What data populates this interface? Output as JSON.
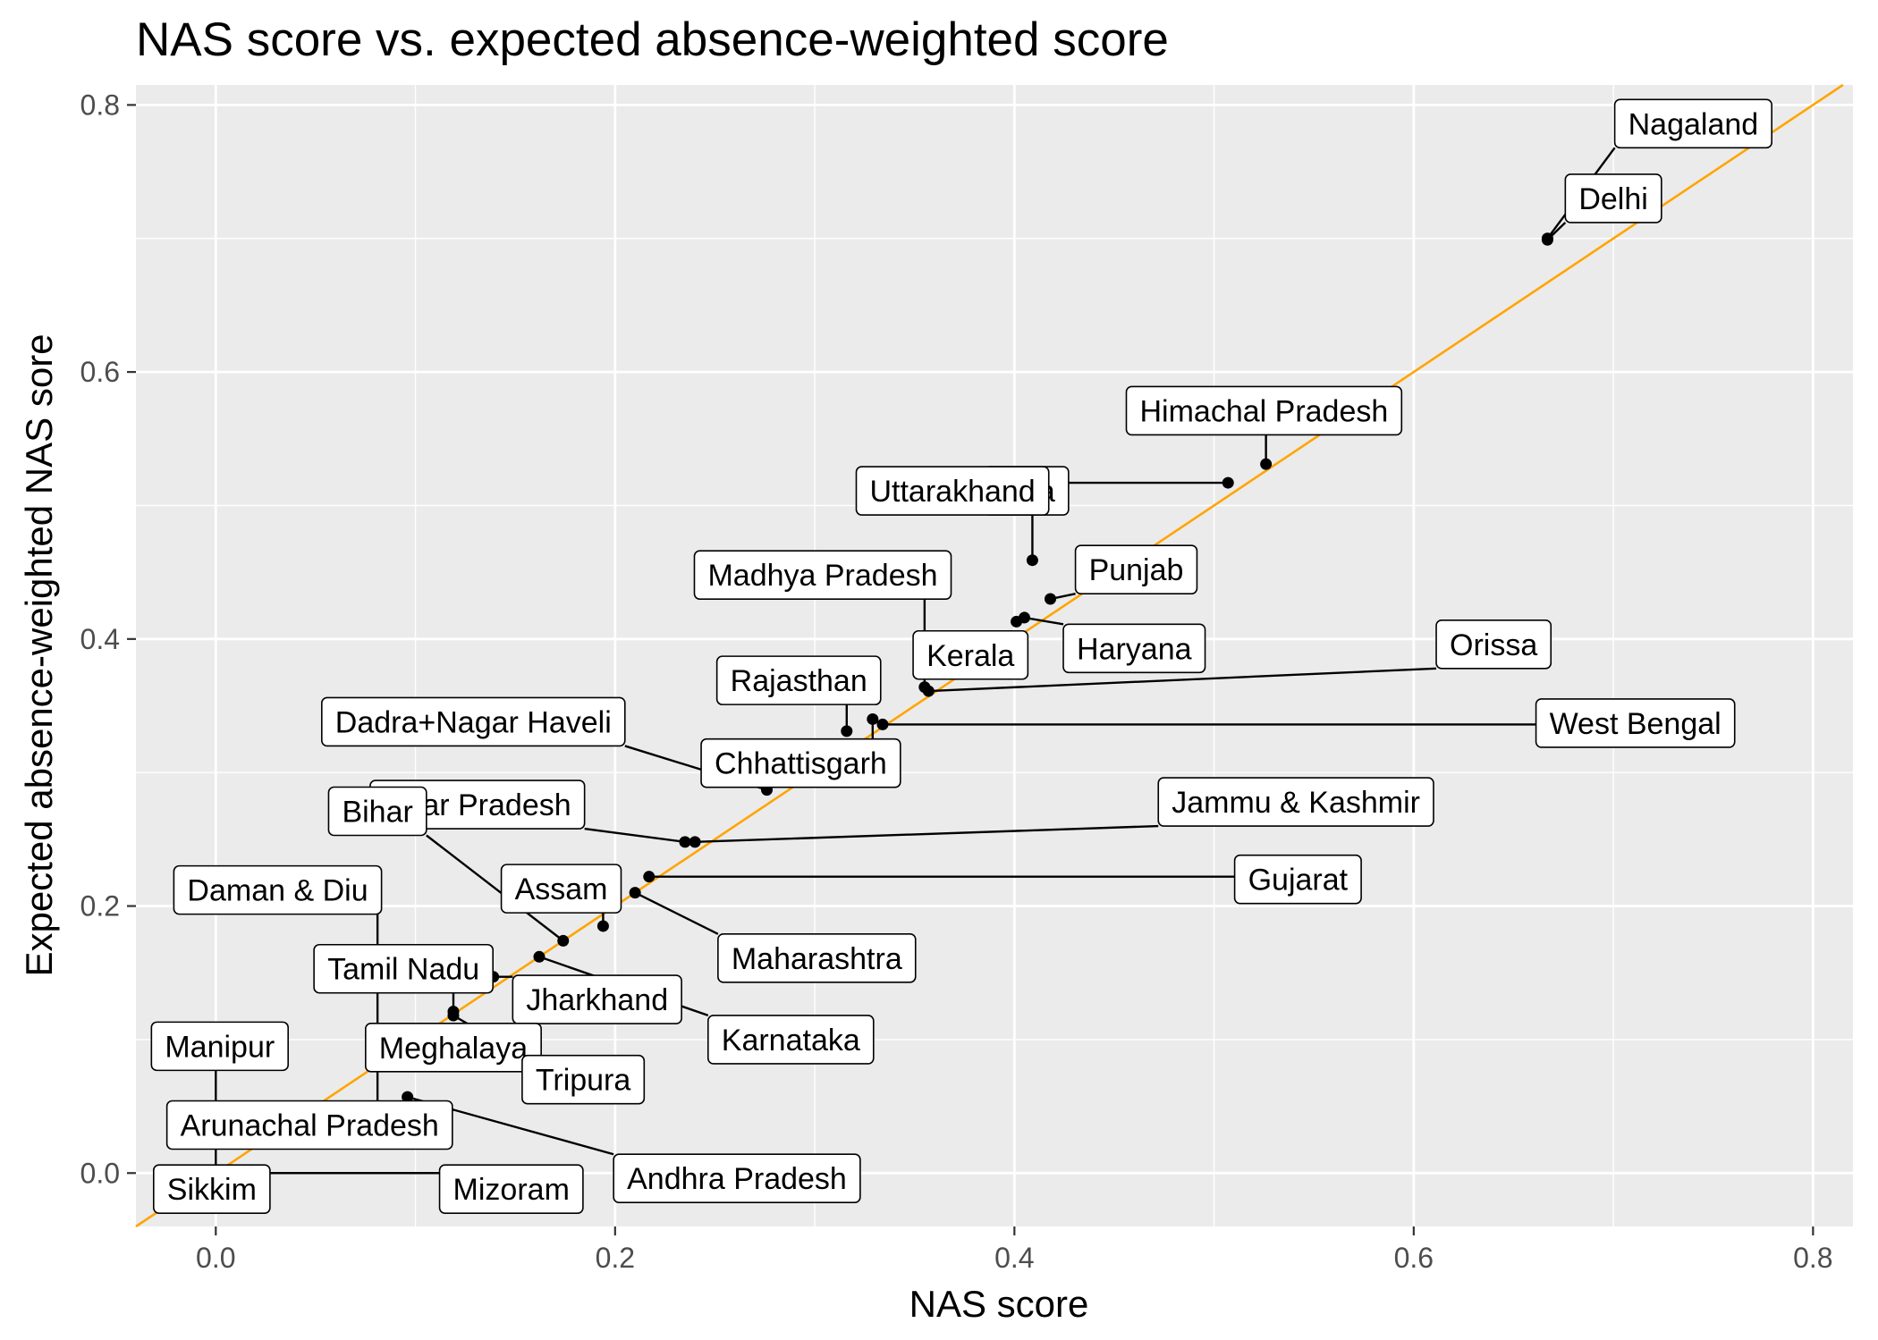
{
  "chart_data": {
    "type": "scatter",
    "title": "NAS score vs. expected absence-weighted score",
    "xlabel": "NAS score",
    "ylabel": "Expected absence-weighted NAS sore",
    "xlim": [
      -0.04,
      0.82
    ],
    "ylim": [
      -0.04,
      0.815
    ],
    "x_ticks": [
      0.0,
      0.2,
      0.4,
      0.6,
      0.8
    ],
    "x_tick_labels": [
      "0.0",
      "0.2",
      "0.4",
      "0.6",
      "0.8"
    ],
    "y_ticks": [
      0.0,
      0.2,
      0.4,
      0.6,
      0.8
    ],
    "y_tick_labels": [
      "0.0",
      "0.2",
      "0.4",
      "0.6",
      "0.8"
    ],
    "reference_line": {
      "slope": 1,
      "intercept": 0,
      "color": "#FFA500"
    },
    "panel_background": "#EBEBEB",
    "grid": true,
    "points": [
      {
        "label": "Nagaland",
        "x": 0.667,
        "y": 0.7,
        "lx": 0.74,
        "ly": 0.786
      },
      {
        "label": "Delhi",
        "x": 0.667,
        "y": 0.699,
        "lx": 0.7,
        "ly": 0.73
      },
      {
        "label": "Himachal Pradesh",
        "x": 0.526,
        "y": 0.531,
        "lx": 0.525,
        "ly": 0.571
      },
      {
        "label": "Goa",
        "x": 0.507,
        "y": 0.517,
        "lx": 0.406,
        "ly": 0.511
      },
      {
        "label": "Uttarakhand",
        "x": 0.409,
        "y": 0.459,
        "lx": 0.369,
        "ly": 0.511
      },
      {
        "label": "Punjab",
        "x": 0.418,
        "y": 0.43,
        "lx": 0.461,
        "ly": 0.452
      },
      {
        "label": "Haryana",
        "x": 0.405,
        "y": 0.416,
        "lx": 0.46,
        "ly": 0.393
      },
      {
        "label": "Kerala",
        "x": 0.401,
        "y": 0.413,
        "lx": 0.378,
        "ly": 0.388
      },
      {
        "label": "Madhya Pradesh",
        "x": 0.355,
        "y": 0.364,
        "lx": 0.304,
        "ly": 0.448
      },
      {
        "label": "Orissa",
        "x": 0.357,
        "y": 0.361,
        "lx": 0.64,
        "ly": 0.396
      },
      {
        "label": "Rajasthan",
        "x": 0.316,
        "y": 0.331,
        "lx": 0.292,
        "ly": 0.369
      },
      {
        "label": "West Bengal",
        "x": 0.334,
        "y": 0.336,
        "lx": 0.711,
        "ly": 0.337
      },
      {
        "label": "Chhattisgarh",
        "x": 0.329,
        "y": 0.34,
        "lx": 0.293,
        "ly": 0.307
      },
      {
        "label": "Dadra+Nagar Haveli",
        "x": 0.276,
        "y": 0.287,
        "lx": 0.129,
        "ly": 0.338
      },
      {
        "label": "Jammu & Kashmir",
        "x": 0.24,
        "y": 0.248,
        "lx": 0.541,
        "ly": 0.278
      },
      {
        "label": "Uttar Pradesh",
        "x": 0.235,
        "y": 0.248,
        "lx": 0.131,
        "ly": 0.276
      },
      {
        "label": "Bihar",
        "x": 0.174,
        "y": 0.174,
        "lx": 0.081,
        "ly": 0.271
      },
      {
        "label": "Gujarat",
        "x": 0.217,
        "y": 0.222,
        "lx": 0.542,
        "ly": 0.22
      },
      {
        "label": "Assam",
        "x": 0.194,
        "y": 0.185,
        "lx": 0.173,
        "ly": 0.213
      },
      {
        "label": "Maharashtra",
        "x": 0.21,
        "y": 0.21,
        "lx": 0.301,
        "ly": 0.161
      },
      {
        "label": "Daman & Diu",
        "x": 0.081,
        "y": 0.08,
        "lx": 0.031,
        "ly": 0.212
      },
      {
        "label": "Tamil Nadu",
        "x": 0.119,
        "y": 0.121,
        "lx": 0.094,
        "ly": 0.153
      },
      {
        "label": "Jharkhand",
        "x": 0.139,
        "y": 0.147,
        "lx": 0.191,
        "ly": 0.13
      },
      {
        "label": "Karnataka",
        "x": 0.162,
        "y": 0.162,
        "lx": 0.288,
        "ly": 0.1
      },
      {
        "label": "Meghalaya",
        "x": 0.081,
        "y": 0.082,
        "lx": 0.119,
        "ly": 0.094
      },
      {
        "label": "Tripura",
        "x": 0.119,
        "y": 0.118,
        "lx": 0.184,
        "ly": 0.07
      },
      {
        "label": "Manipur",
        "x": 0.0,
        "y": 0.0,
        "lx": 0.002,
        "ly": 0.095
      },
      {
        "label": "Arunachal Pradesh",
        "x": 0.081,
        "y": 0.08,
        "lx": 0.047,
        "ly": 0.036
      },
      {
        "label": "Andhra Pradesh",
        "x": 0.096,
        "y": 0.057,
        "lx": 0.261,
        "ly": -0.004
      },
      {
        "label": "Sikkim",
        "x": 0.0,
        "y": 0.0,
        "lx": -0.002,
        "ly": -0.012
      },
      {
        "label": "Mizoram",
        "x": 0.0,
        "y": 0.0,
        "lx": 0.148,
        "ly": -0.012
      }
    ]
  }
}
